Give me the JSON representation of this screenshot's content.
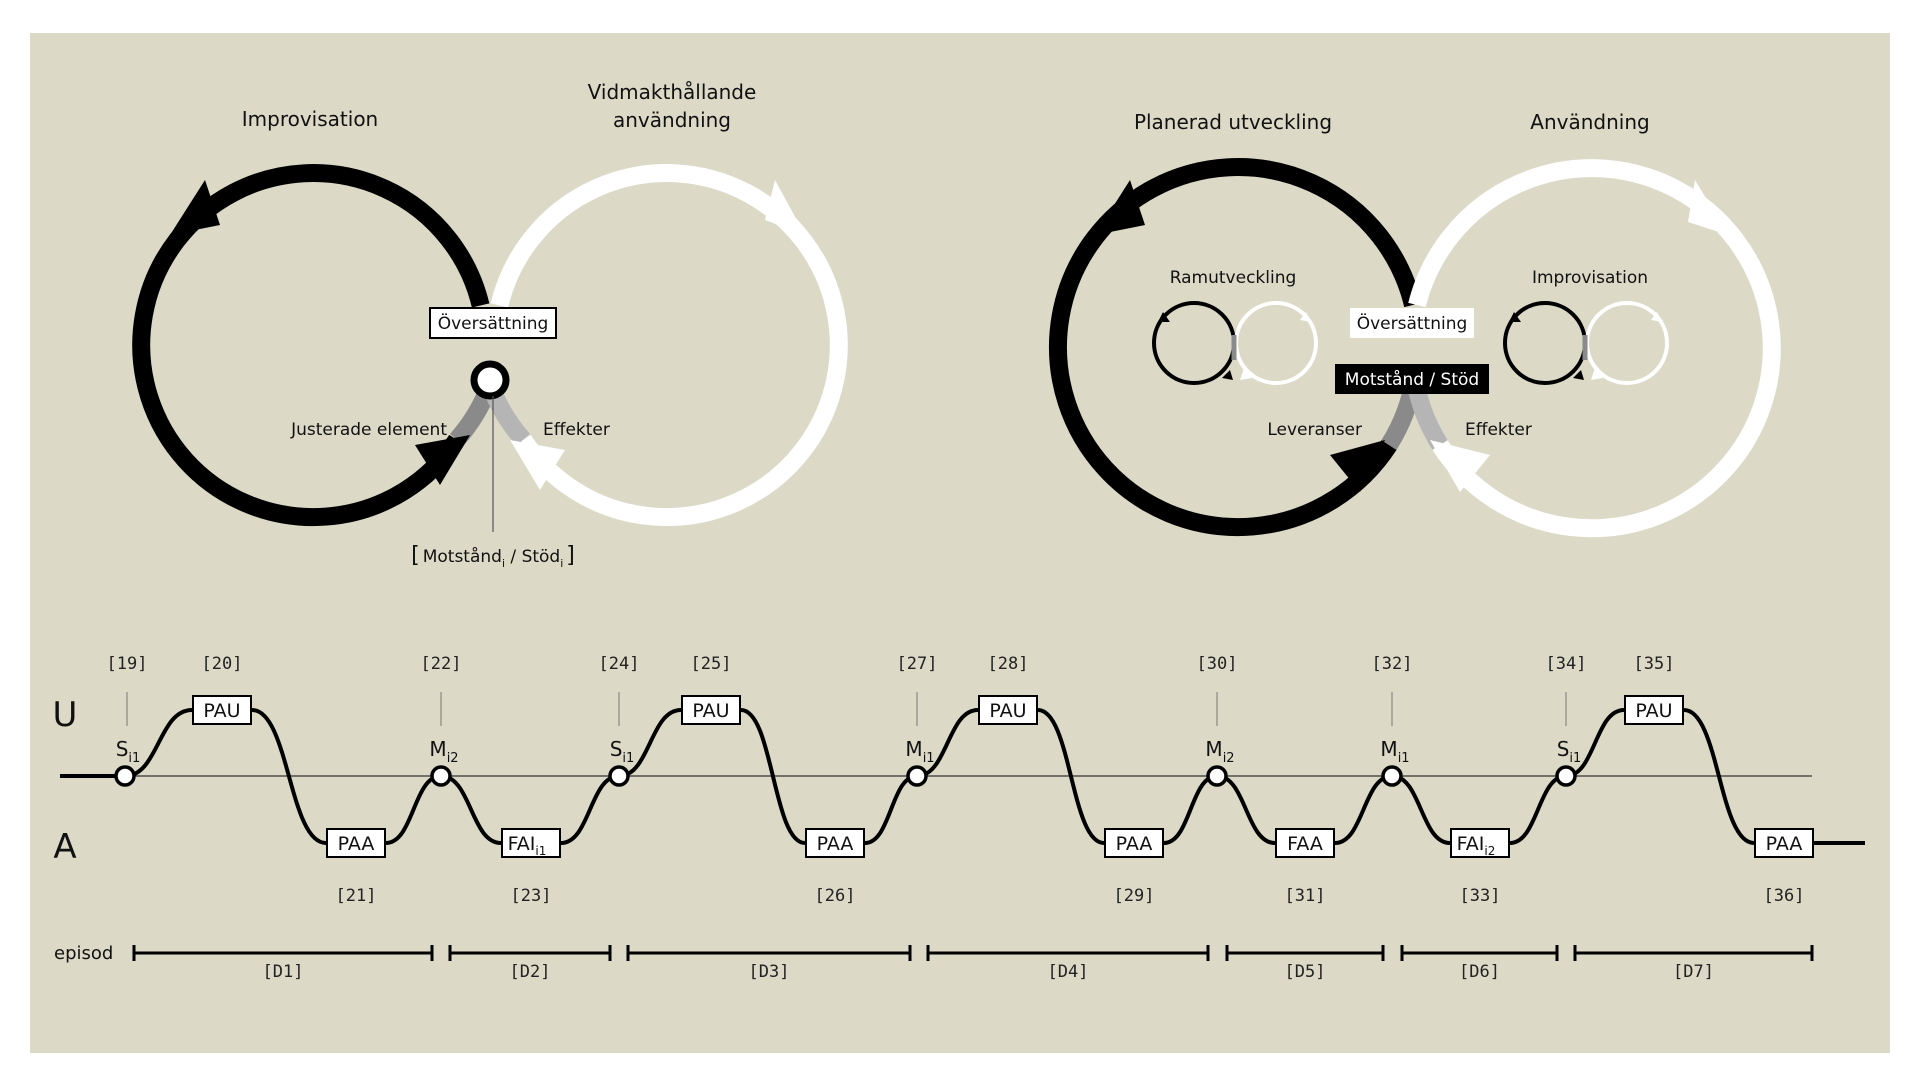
{
  "colors": {
    "background": "#dcd9c7",
    "dark": "#000000",
    "light": "#ffffff",
    "grey": "#8a8a8a"
  },
  "left_diagram": {
    "loop_left_label": "Improvisation",
    "loop_right_label_line1": "Vidmakthållande",
    "loop_right_label_line2": "användning",
    "center_box": "Översättning",
    "left_arrow_label": "Justerade element",
    "right_arrow_label": "Effekter",
    "bracket_open": "[",
    "bracket_motstand": "Motstånd",
    "bracket_sub1": "i",
    "bracket_sep": " / Stöd",
    "bracket_sub2": "i",
    "bracket_close": "]"
  },
  "right_diagram": {
    "loop_left_label": "Planerad utveckling",
    "loop_right_label": "Användning",
    "inner_left_label": "Ramutveckling",
    "inner_right_label": "Improvisation",
    "center_box": "Översättning",
    "dark_box": "Motstånd / Stöd",
    "left_arrow_label": "Leveranser",
    "right_arrow_label": "Effekter"
  },
  "timeline": {
    "level_upper": "U",
    "level_lower": "A",
    "episode_label": "episod",
    "top_refs": [
      "[19]",
      "[20]",
      "[22]",
      "[24]",
      "[25]",
      "[27]",
      "[28]",
      "[30]",
      "[32]",
      "[34]",
      "[35]"
    ],
    "upper_boxes": [
      "PAU",
      "PAU",
      "PAU",
      "PAU"
    ],
    "lower_boxes": [
      {
        "main": "PAA",
        "sub": ""
      },
      {
        "main": "FAI",
        "sub": "i1"
      },
      {
        "main": "PAA",
        "sub": ""
      },
      {
        "main": "PAA",
        "sub": ""
      },
      {
        "main": "FAA",
        "sub": ""
      },
      {
        "main": "FAI",
        "sub": "i2"
      },
      {
        "main": "PAA",
        "sub": ""
      }
    ],
    "bottom_refs": [
      "[21]",
      "[23]",
      "[26]",
      "[29]",
      "[31]",
      "[33]",
      "[36]"
    ],
    "markers": [
      {
        "main": "S",
        "sub": "i1"
      },
      {
        "main": "M",
        "sub": "i2"
      },
      {
        "main": "S",
        "sub": "i1"
      },
      {
        "main": "M",
        "sub": "i1"
      },
      {
        "main": "M",
        "sub": "i2"
      },
      {
        "main": "M",
        "sub": "i1"
      },
      {
        "main": "S",
        "sub": "i1"
      }
    ],
    "episodes": [
      "[D1]",
      "[D2]",
      "[D3]",
      "[D4]",
      "[D5]",
      "[D6]",
      "[D7]"
    ]
  }
}
